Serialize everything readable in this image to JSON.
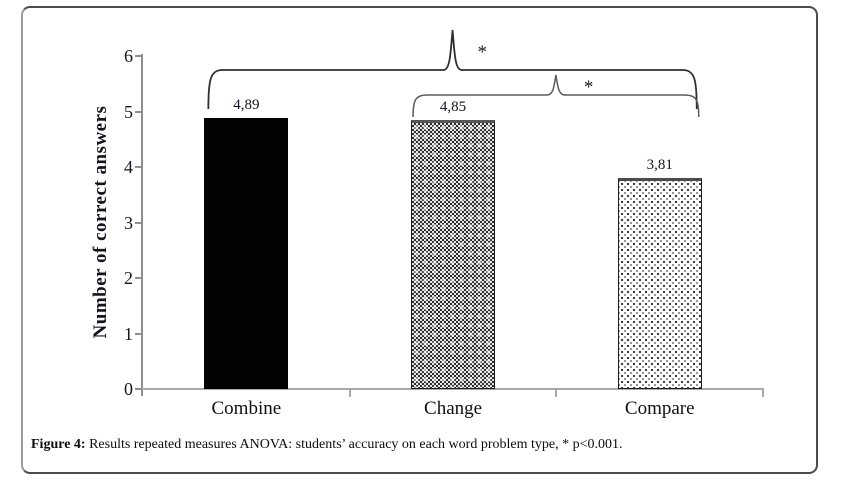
{
  "figure": {
    "caption_label": "Figure 4:",
    "caption_text": " Results repeated measures ANOVA: students’ accuracy on each word problem type, * p<0.001."
  },
  "chart_data": {
    "type": "bar",
    "title": "",
    "xlabel": "",
    "ylabel": "Number of correct answers",
    "categories": [
      "Combine",
      "Change",
      "Compare"
    ],
    "values": [
      4.89,
      4.85,
      3.81
    ],
    "value_labels": [
      "4,89",
      "4,85",
      "3,81"
    ],
    "ylim": [
      0,
      6
    ],
    "yticks": [
      0,
      1,
      2,
      3,
      4,
      5,
      6
    ],
    "grid": false,
    "legend": null,
    "bar_styles": [
      "solid-black",
      "checker-gray",
      "dotted-white"
    ],
    "significance": [
      {
        "from": "Combine",
        "to": "Compare",
        "label": "*"
      },
      {
        "from": "Change",
        "to": "Compare",
        "label": "*"
      }
    ]
  },
  "colors": {
    "axis": "#a9a9a9",
    "bar_solid": "#030303",
    "brace_outer": "#2f2f2f",
    "brace_inner": "#5a5a5a",
    "text": "#111111"
  }
}
